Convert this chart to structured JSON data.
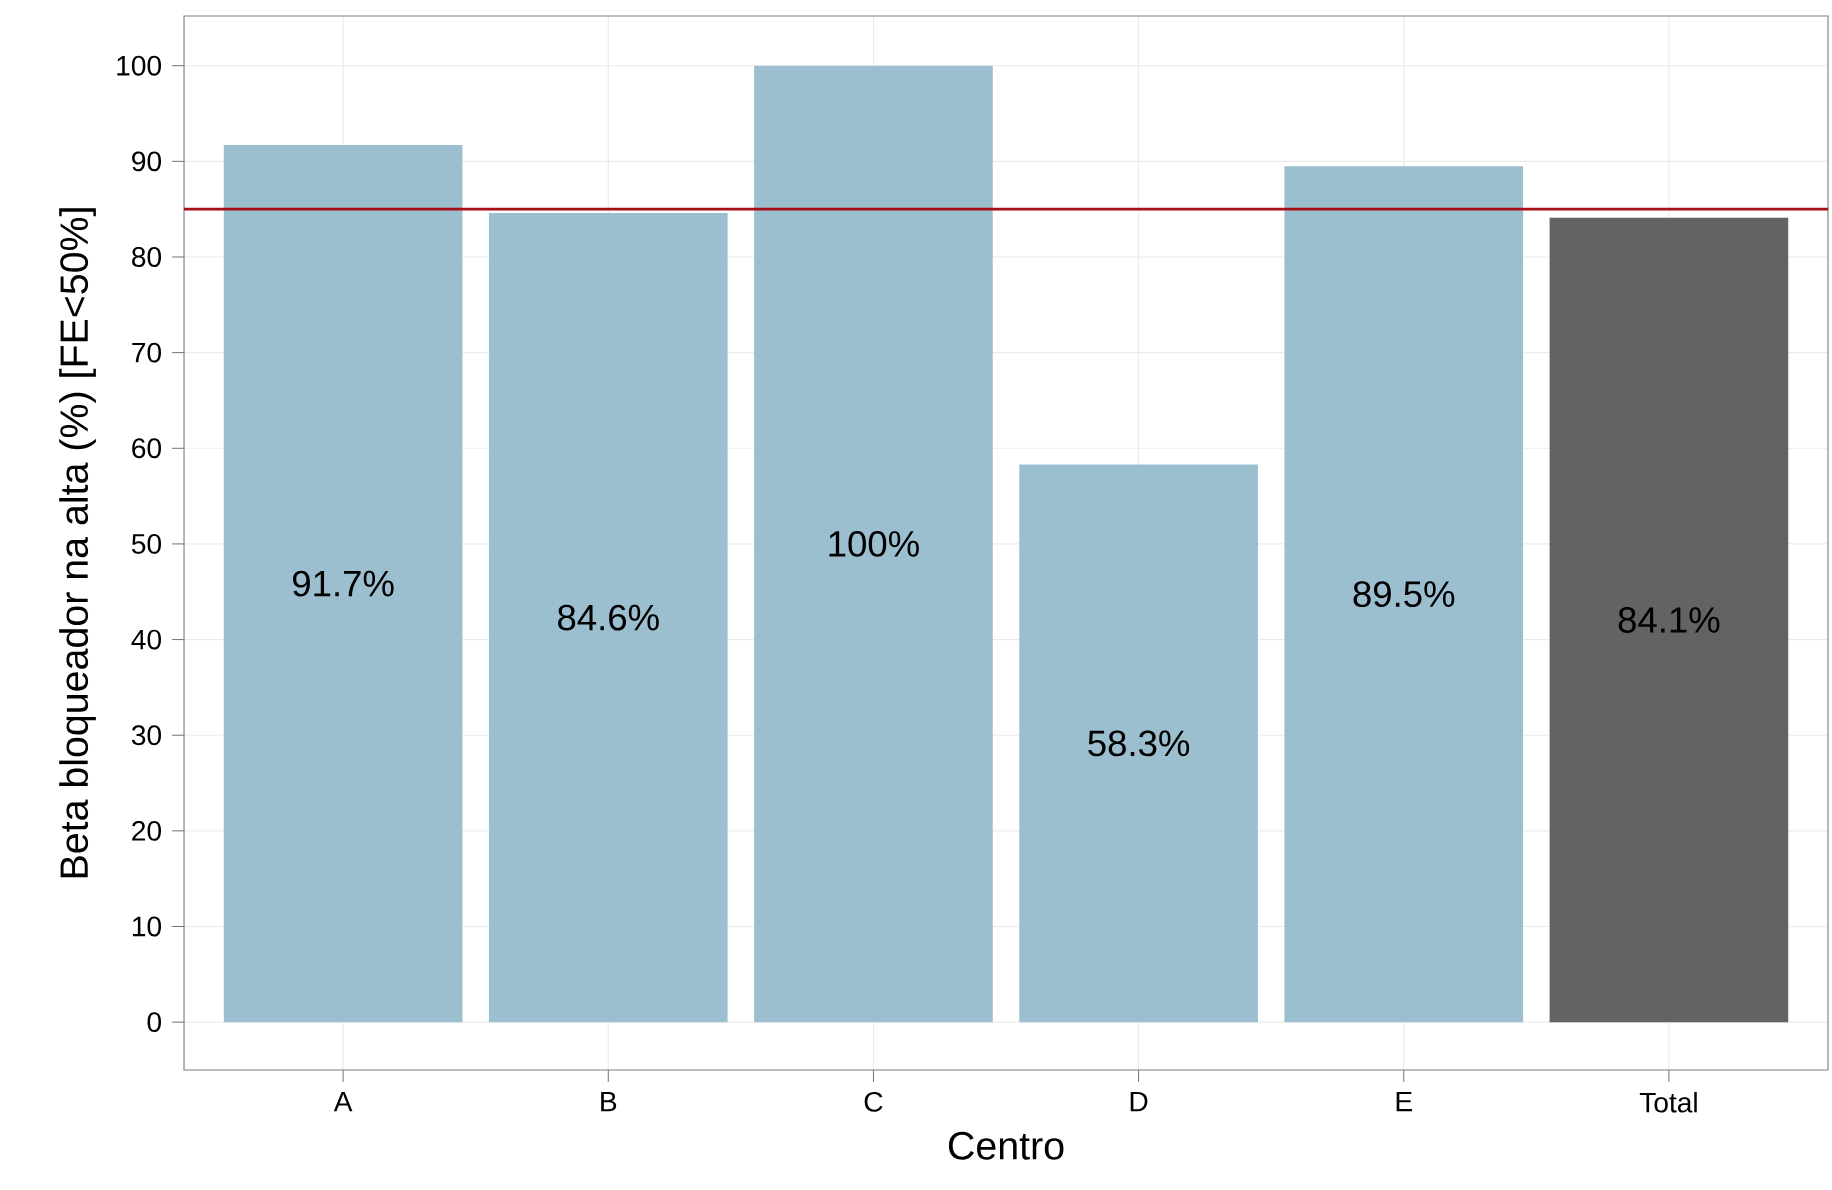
{
  "chart_data": {
    "type": "bar",
    "xlabel": "Centro",
    "ylabel": "Beta bloqueador na alta (%) [FE<50%]",
    "categories": [
      "A",
      "B",
      "C",
      "D",
      "E",
      "Total"
    ],
    "values": [
      91.7,
      84.6,
      100,
      58.3,
      89.5,
      84.1
    ],
    "value_labels": [
      "91.7%",
      "84.6%",
      "100%",
      "58.3%",
      "89.5%",
      "84.1%"
    ],
    "colors": [
      "#9bbfce",
      "#9bbfce",
      "#9bbfce",
      "#9bbfce",
      "#9bbfce",
      "#636363"
    ],
    "ylim": [
      -5,
      105.2
    ],
    "yticks": [
      0,
      10,
      20,
      30,
      40,
      50,
      60,
      70,
      80,
      90,
      100
    ],
    "ref_lines": [
      {
        "axis": "y",
        "value": 85,
        "color": "#a50f15"
      }
    ],
    "grid": true
  }
}
